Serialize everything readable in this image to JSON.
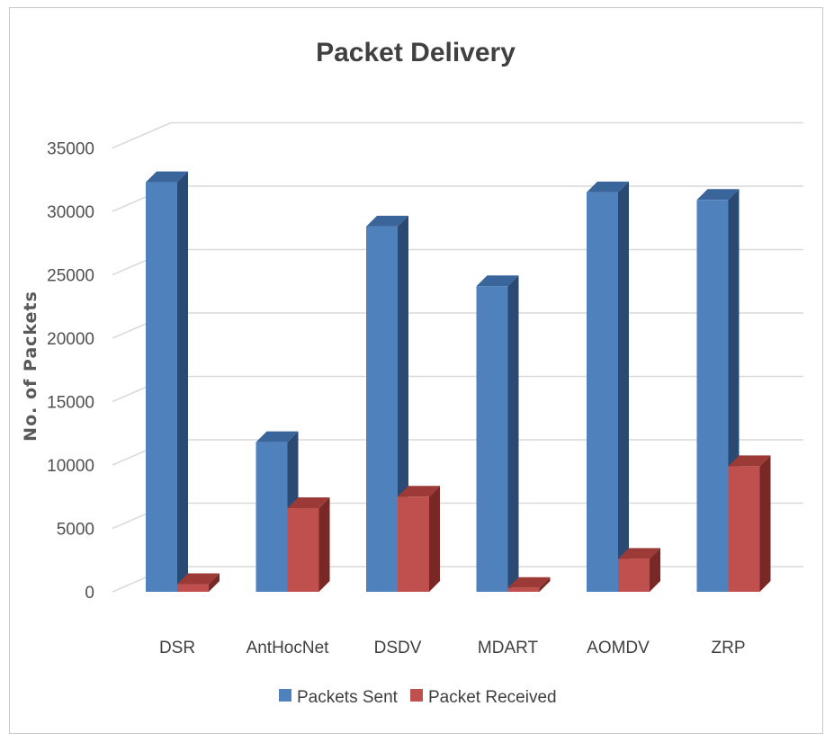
{
  "chart_data": {
    "type": "bar",
    "title": "Packet Delivery",
    "xlabel": "",
    "ylabel": "No. of Packets",
    "categories": [
      "DSR",
      "AntHocNet",
      "DSDV",
      "MDART",
      "AOMDV",
      "ZRP"
    ],
    "series": [
      {
        "name": "Packets Sent",
        "values": [
          32300,
          11800,
          28800,
          24100,
          31500,
          30900
        ],
        "color": "#4f81bd",
        "side_color": "#2a4a73",
        "top_color": "#3a659a"
      },
      {
        "name": "Packet Received",
        "values": [
          600,
          6600,
          7500,
          300,
          2600,
          9900
        ],
        "color": "#c0504d",
        "side_color": "#7a2826",
        "top_color": "#9b3a37"
      }
    ],
    "ylim": [
      0,
      35000
    ],
    "yticks": [
      0,
      5000,
      10000,
      15000,
      20000,
      25000,
      30000,
      35000
    ],
    "grid": true,
    "legend_position": "bottom",
    "style": "3d-column"
  }
}
